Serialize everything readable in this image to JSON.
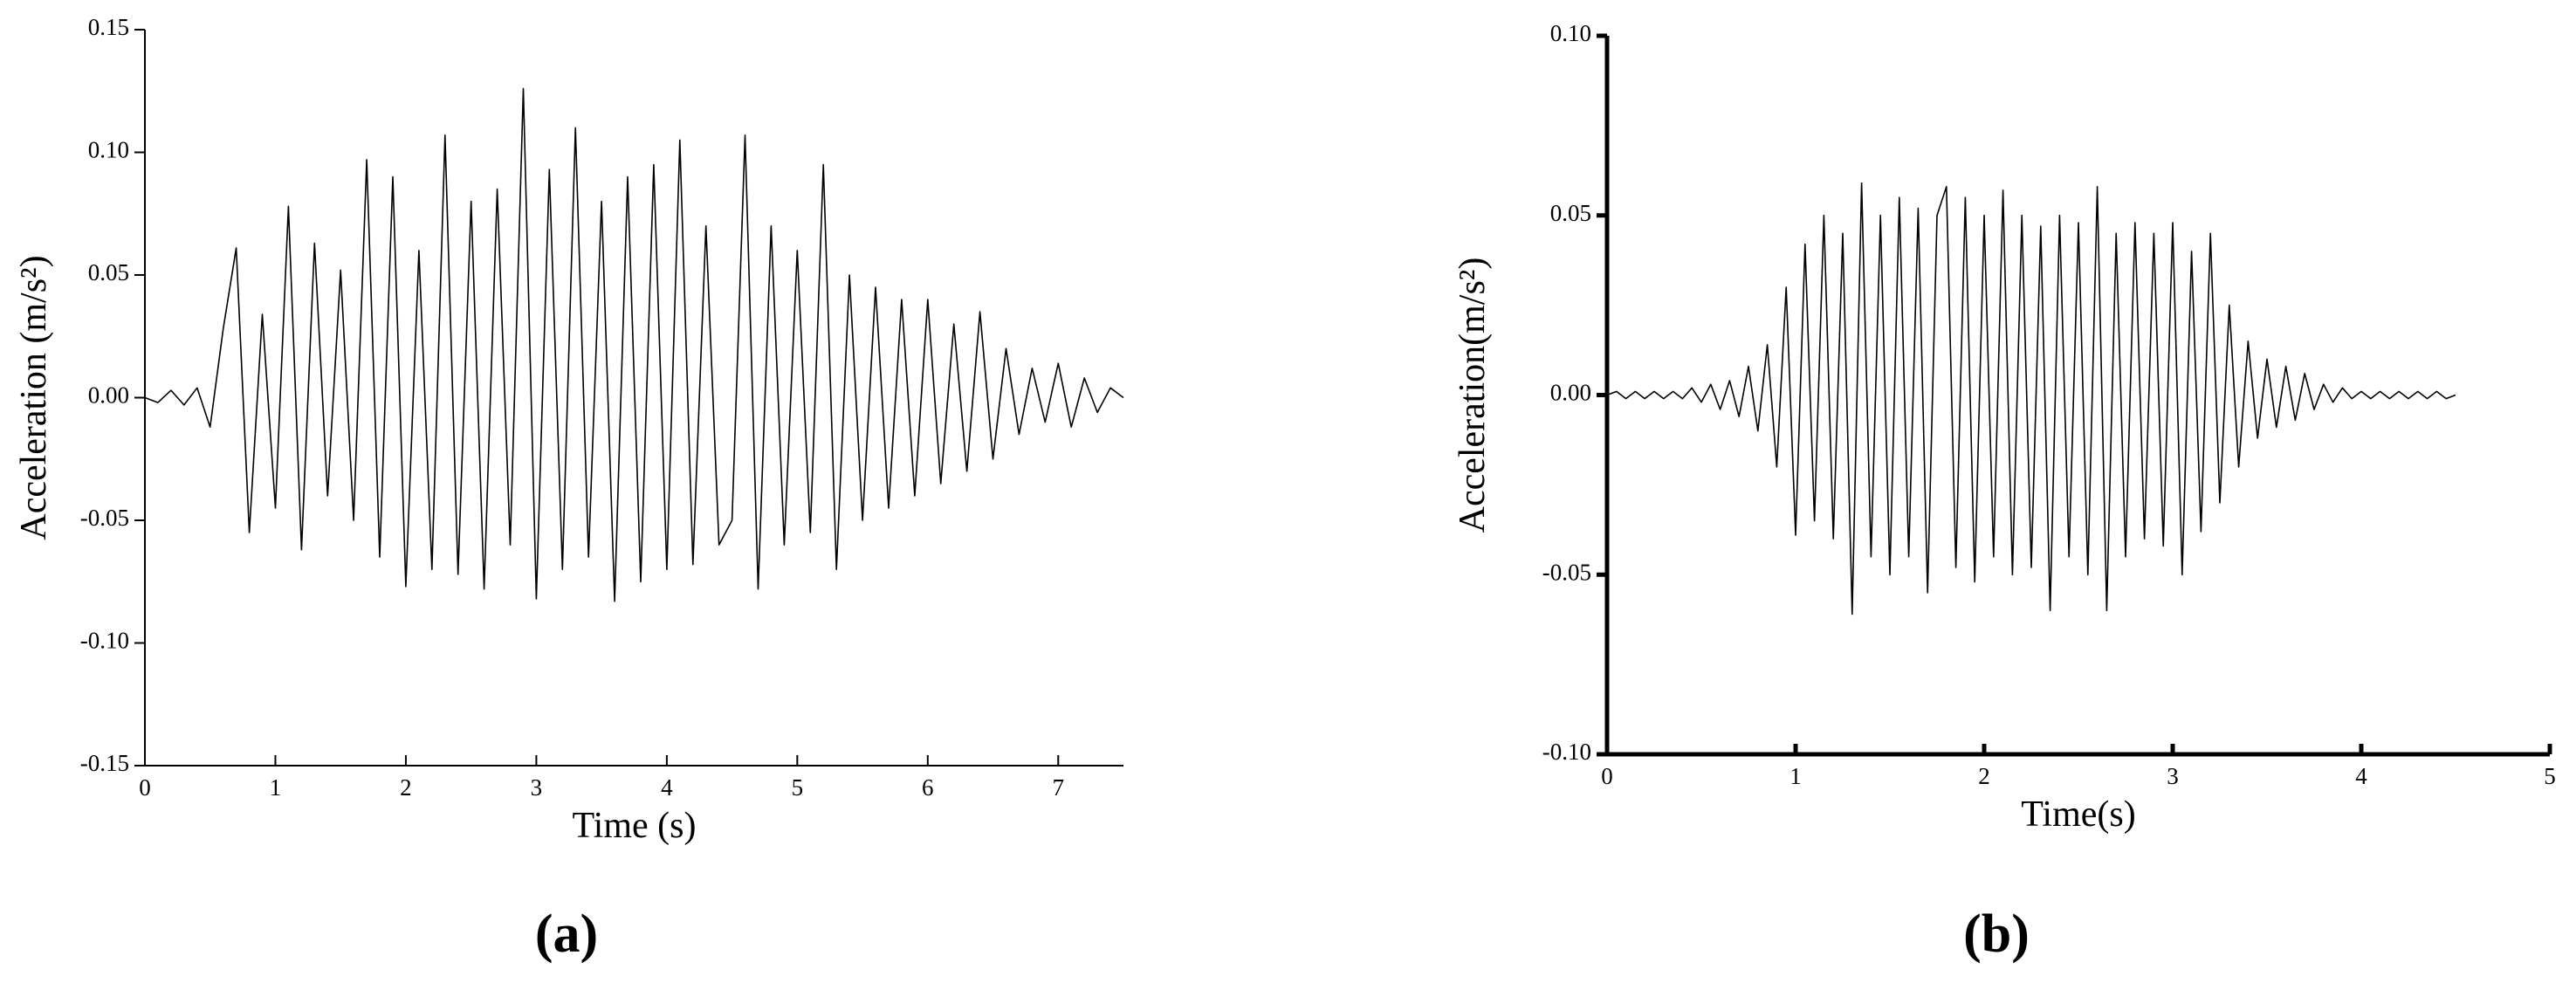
{
  "chart_data": [
    {
      "type": "line",
      "label": "(a)",
      "x_label": "Time (s)",
      "y_label": "Acceleration (m/s²)",
      "color": "#000000",
      "xlim": [
        0,
        7.5
      ],
      "ylim": [
        -0.15,
        0.15
      ],
      "xticks": [
        0,
        1,
        2,
        3,
        4,
        5,
        6,
        7
      ],
      "yticks": [
        -0.15,
        {
          "value": -0.1,
          "label": "-0.10"
        },
        -0.05,
        {
          "value": 0,
          "label": "0.00"
        },
        0.05,
        {
          "value": 0.1,
          "label": "0.10"
        },
        0.15
      ],
      "x": [
        0,
        0.1,
        0.2,
        0.3,
        0.4,
        0.5,
        0.6,
        0.7,
        0.8,
        0.9,
        1,
        1.1,
        1.2,
        1.3,
        1.4,
        1.5,
        1.6,
        1.7,
        1.8,
        1.9,
        2,
        2.1,
        2.2,
        2.3,
        2.4,
        2.5,
        2.6,
        2.7,
        2.8,
        2.9,
        3,
        3.1,
        3.2,
        3.3,
        3.4,
        3.5,
        3.6,
        3.7,
        3.8,
        3.9,
        4,
        4.1,
        4.2,
        4.3,
        4.4,
        4.5,
        4.6,
        4.7,
        4.8,
        4.9,
        5,
        5.1,
        5.2,
        5.3,
        5.4,
        5.5,
        5.6,
        5.7,
        5.8,
        5.9,
        6,
        6.1,
        6.2,
        6.3,
        6.4,
        6.5,
        6.6,
        6.7,
        6.8,
        6.9,
        7,
        7.1,
        7.2,
        7.3,
        7.4,
        7.5
      ],
      "values": [
        0,
        -0.002,
        0.003,
        -0.003,
        0.004,
        -0.012,
        0.028,
        0.061,
        -0.055,
        0.034,
        -0.045,
        0.078,
        -0.062,
        0.063,
        -0.04,
        0.052,
        -0.05,
        0.097,
        -0.065,
        0.09,
        -0.077,
        0.06,
        -0.07,
        0.107,
        -0.072,
        0.08,
        -0.078,
        0.085,
        -0.06,
        0.126,
        -0.082,
        0.093,
        -0.07,
        0.11,
        -0.065,
        0.08,
        -0.083,
        0.09,
        -0.075,
        0.095,
        -0.07,
        0.105,
        -0.068,
        0.07,
        -0.06,
        -0.05,
        0.107,
        -0.078,
        0.07,
        -0.06,
        0.06,
        -0.055,
        0.095,
        -0.07,
        0.05,
        -0.05,
        0.045,
        -0.045,
        0.04,
        -0.04,
        0.04,
        -0.035,
        0.03,
        -0.03,
        0.035,
        -0.025,
        0.02,
        -0.015,
        0.012,
        -0.01,
        0.014,
        -0.012,
        0.008,
        -0.006,
        0.004,
        0
      ]
    },
    {
      "type": "line",
      "label": "(b)",
      "x_label": "Time(s)",
      "y_label": "Acceleration(m/s²)",
      "color": "#000000",
      "xlim": [
        0,
        5
      ],
      "ylim": [
        -0.1,
        0.1
      ],
      "xticks": [
        0,
        1,
        2,
        3,
        4,
        5
      ],
      "yticks": [
        {
          "value": -0.1,
          "label": "-0.10"
        },
        -0.05,
        {
          "value": 0,
          "label": "0.00"
        },
        0.05,
        {
          "value": 0.1,
          "label": "0.10"
        }
      ],
      "x": [
        0,
        0.05,
        0.1,
        0.15,
        0.2,
        0.25,
        0.3,
        0.35,
        0.4,
        0.45,
        0.5,
        0.55,
        0.6,
        0.65,
        0.7,
        0.75,
        0.8,
        0.85,
        0.9,
        0.95,
        1,
        1.05,
        1.1,
        1.15,
        1.2,
        1.25,
        1.3,
        1.35,
        1.4,
        1.45,
        1.5,
        1.55,
        1.6,
        1.65,
        1.7,
        1.75,
        1.8,
        1.85,
        1.9,
        1.95,
        2,
        2.05,
        2.1,
        2.15,
        2.2,
        2.25,
        2.3,
        2.35,
        2.4,
        2.45,
        2.5,
        2.55,
        2.6,
        2.65,
        2.7,
        2.75,
        2.8,
        2.85,
        2.9,
        2.95,
        3,
        3.05,
        3.1,
        3.15,
        3.2,
        3.25,
        3.3,
        3.35,
        3.4,
        3.45,
        3.5,
        3.55,
        3.6,
        3.65,
        3.7,
        3.75,
        3.8,
        3.85,
        3.9,
        3.95,
        4,
        4.05,
        4.1,
        4.15,
        4.2,
        4.25,
        4.3,
        4.35,
        4.4,
        4.45,
        4.5
      ],
      "values": [
        0,
        0.001,
        -0.001,
        0.001,
        -0.001,
        0.001,
        -0.001,
        0.001,
        -0.001,
        0.002,
        -0.002,
        0.003,
        -0.004,
        0.004,
        -0.006,
        0.008,
        -0.01,
        0.014,
        -0.02,
        0.03,
        -0.039,
        0.042,
        -0.035,
        0.05,
        -0.04,
        0.045,
        -0.061,
        0.059,
        -0.045,
        0.05,
        -0.05,
        0.055,
        -0.045,
        0.052,
        -0.055,
        0.05,
        0.058,
        -0.048,
        0.055,
        -0.052,
        0.05,
        -0.045,
        0.057,
        -0.05,
        0.05,
        -0.048,
        0.047,
        -0.06,
        0.05,
        -0.045,
        0.048,
        -0.05,
        0.058,
        -0.06,
        0.045,
        -0.045,
        0.048,
        -0.04,
        0.045,
        -0.042,
        0.048,
        -0.05,
        0.04,
        -0.038,
        0.045,
        -0.03,
        0.025,
        -0.02,
        0.015,
        -0.012,
        0.01,
        -0.009,
        0.008,
        -0.007,
        0.006,
        -0.004,
        0.003,
        -0.002,
        0.002,
        -0.001,
        0.001,
        -0.001,
        0.001,
        -0.001,
        0.001,
        -0.001,
        0.001,
        -0.001,
        0.001,
        -0.001,
        0
      ]
    }
  ]
}
